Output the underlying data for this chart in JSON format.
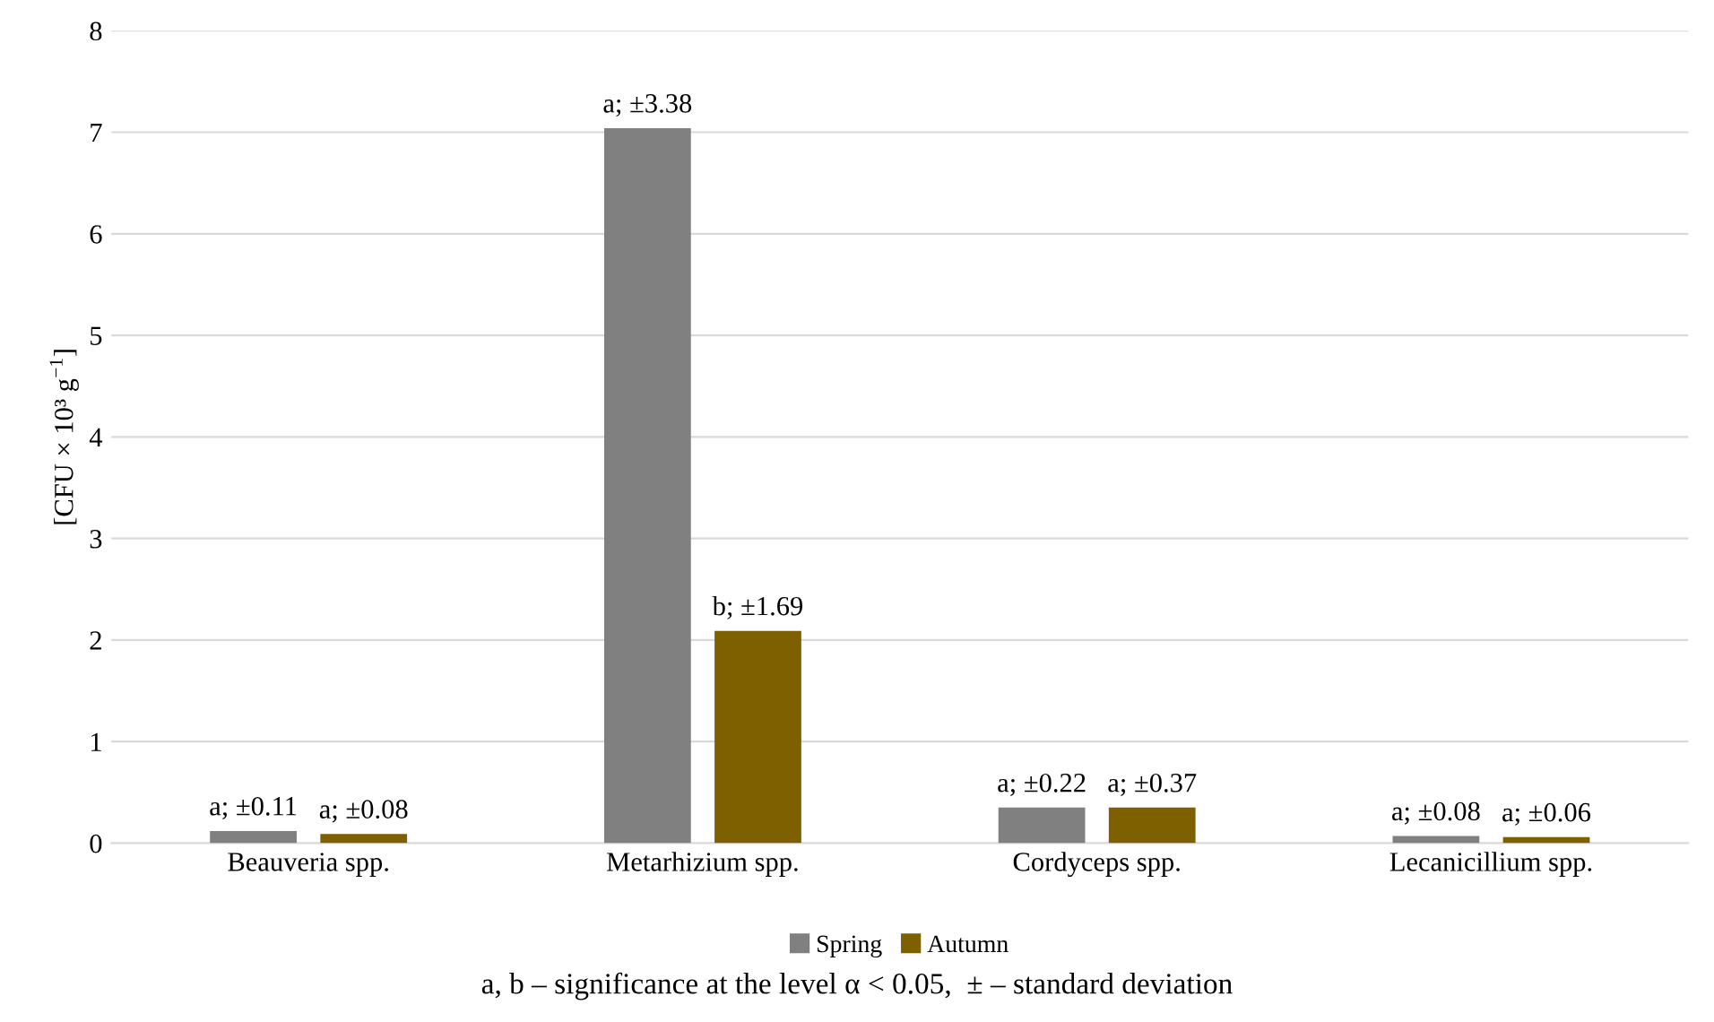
{
  "chart_data": {
    "type": "bar",
    "ylabel": "[CFU × 10³ g$^{−1}$]",
    "categories": [
      "Beauveria spp.",
      "Metarhizium spp.",
      "Cordyceps spp.",
      "Lecanicillium spp."
    ],
    "series": [
      {
        "name": "Spring",
        "color": "#808080",
        "values": [
          0.12,
          7.04,
          0.35,
          0.07
        ]
      },
      {
        "name": "Autumn",
        "color": "#7f6000",
        "values": [
          0.09,
          2.09,
          0.35,
          0.06
        ]
      }
    ],
    "ylim": [
      0,
      8
    ],
    "yticks": [
      0,
      1,
      2,
      3,
      4,
      5,
      6,
      7,
      8
    ],
    "grid": "y",
    "legend": "bottom",
    "annotations": [
      "a; ±0.11",
      "a; ±0.08",
      "a; ±3.38",
      "b; ±1.69",
      "a; ±0.22",
      "a; ±0.37",
      "a; ±0.08",
      "a; ±0.06",
      "a, b – significance at the level α < 0.05,  ± – standard deviation"
    ]
  }
}
